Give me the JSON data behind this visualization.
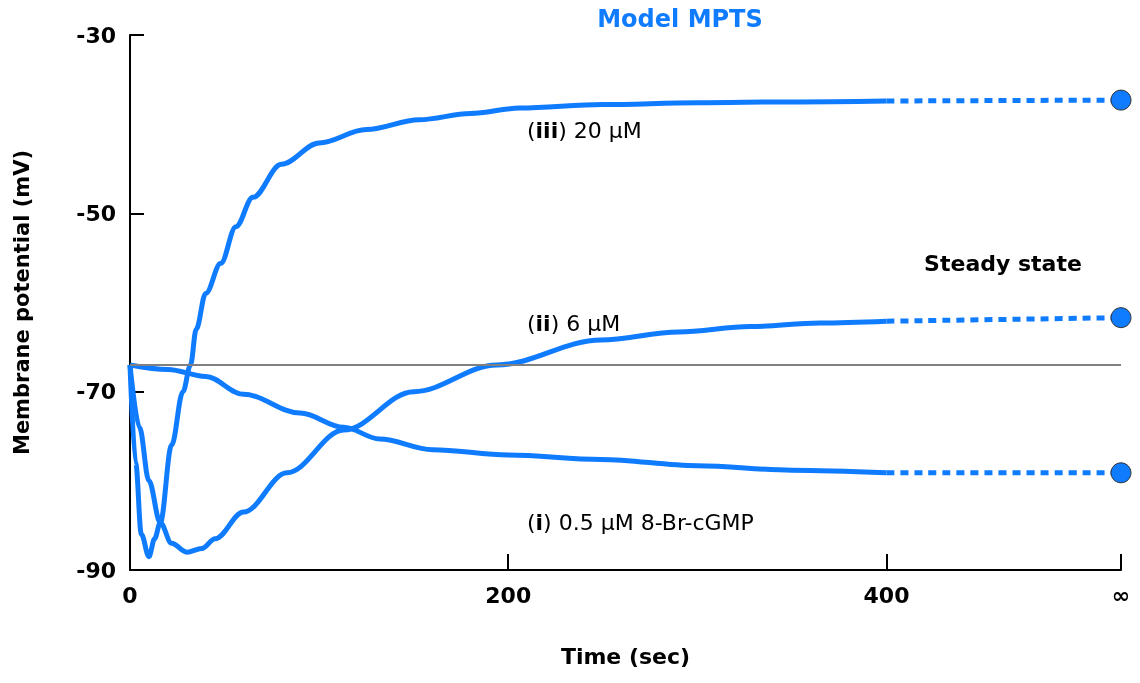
{
  "chart_data": {
    "type": "line",
    "title": "Model MPTS",
    "xlabel": "Time (sec)",
    "ylabel": "Membrane potential (mV)",
    "xlim": [
      0,
      524
    ],
    "xticks": [
      0,
      200,
      400,
      {
        "value": 524,
        "label": "∞"
      }
    ],
    "ylim": [
      -90,
      -30
    ],
    "yticks": [
      -30,
      -50,
      -70,
      -90
    ],
    "grid": false,
    "marker": "none",
    "series": [
      {
        "name": "(iii) 20 μM",
        "color": "#0f7bff",
        "line_style": "solid",
        "x": [
          0,
          3,
          6,
          10,
          13,
          16,
          22,
          28,
          32,
          35,
          40,
          48,
          56,
          65,
          80,
          100,
          125,
          153,
          180,
          206,
          250,
          300,
          350,
          400
        ],
        "values": [
          -67,
          -78,
          -86,
          -88.5,
          -86.5,
          -84.7,
          -76,
          -70,
          -67,
          -63,
          -59,
          -55.6,
          -51.5,
          -48.2,
          -44.5,
          -42.1,
          -40.6,
          -39.5,
          -38.8,
          -38.2,
          -37.8,
          -37.6,
          -37.5,
          -37.4
        ]
      },
      {
        "name": "(ii) 6 μM",
        "color": "#0f7bff",
        "line_style": "solid",
        "x": [
          0,
          5,
          10,
          16,
          22,
          30,
          38,
          45,
          60,
          83,
          113,
          150,
          194,
          249,
          290,
          328,
          365,
          400
        ],
        "values": [
          -67,
          -74,
          -80,
          -84.7,
          -87,
          -88,
          -87.6,
          -86.5,
          -83.5,
          -79.1,
          -74.3,
          -70,
          -67,
          -64.2,
          -63.3,
          -62.7,
          -62.3,
          -62.1
        ]
      },
      {
        "name": "(i) 0.5 μM 8-Br-cGMP",
        "color": "#0f7bff",
        "line_style": "solid",
        "x": [
          0,
          20,
          40,
          60,
          90,
          113,
          132,
          160,
          200,
          249,
          300,
          350,
          400
        ],
        "values": [
          -67,
          -67.5,
          -68.3,
          -70.3,
          -72.4,
          -74,
          -75.3,
          -76.5,
          -77.1,
          -77.6,
          -78.3,
          -78.8,
          -79.1
        ]
      },
      {
        "color": "#0f7bff",
        "line_style": "dashed",
        "x": [
          400,
          524
        ],
        "values": [
          -37.4,
          -37.3
        ]
      },
      {
        "color": "#0f7bff",
        "line_style": "dashed",
        "x": [
          400,
          524
        ],
        "values": [
          -62.1,
          -61.7
        ]
      },
      {
        "color": "#0f7bff",
        "line_style": "dashed",
        "x": [
          400,
          524
        ],
        "values": [
          -79.1,
          -79.1
        ]
      },
      {
        "type": "scatter",
        "marker": "circle",
        "color": "#0f7bff",
        "x": [
          524,
          524,
          524
        ],
        "values": [
          -37.3,
          -61.7,
          -79.1
        ]
      }
    ],
    "ref_lines": [
      {
        "axis": "y",
        "value": -67,
        "color": "#808080",
        "line_style": "solid"
      }
    ],
    "annotations": [
      "Steady state"
    ]
  }
}
